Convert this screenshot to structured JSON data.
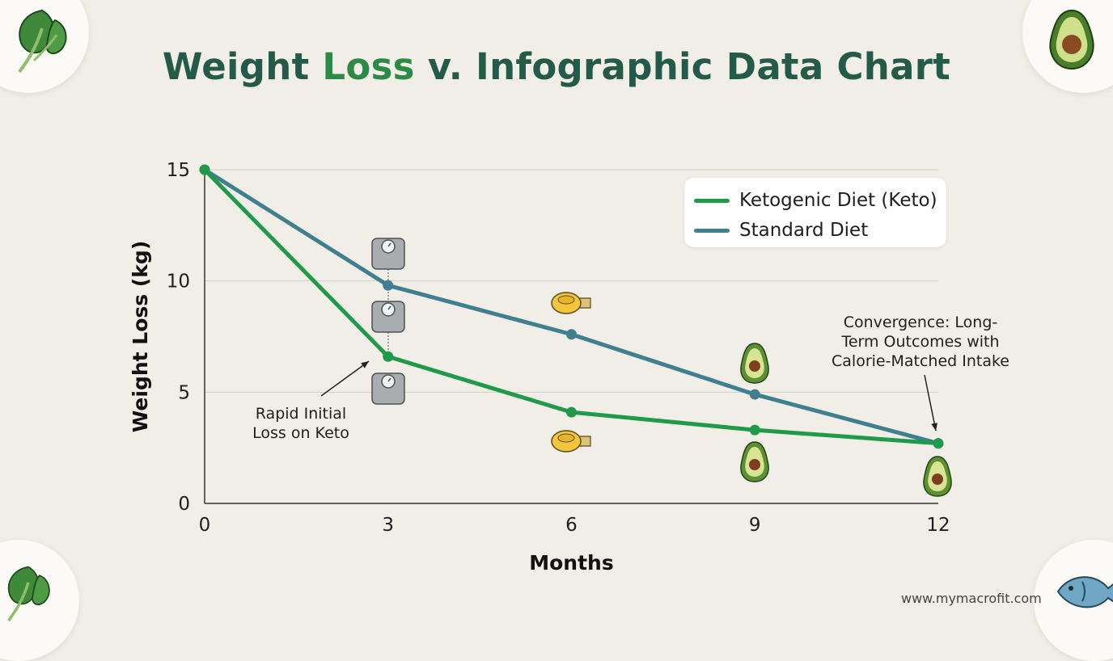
{
  "title": {
    "part1": "Weight ",
    "part2": "Loss",
    "part3": " v. Infographic Data Chart"
  },
  "chart_data": {
    "type": "line",
    "title": "Weight Loss v. Infographic Data Chart",
    "xlabel": "Months",
    "ylabel": "Weight Loss (kg)",
    "x": [
      0,
      3,
      6,
      9,
      12
    ],
    "xticks": [
      "0",
      "3",
      "6",
      "9",
      "12"
    ],
    "yticks": [
      "0",
      "5",
      "10",
      "15"
    ],
    "xlim": [
      0,
      12
    ],
    "ylim": [
      0,
      15
    ],
    "grid": "horizontal",
    "legend_position": "top-right",
    "series": [
      {
        "name": "Ketogenic Diet (Keto)",
        "color": "#1f9a48",
        "values": [
          15,
          6.6,
          4.1,
          3.3,
          2.7
        ]
      },
      {
        "name": "Standard Diet",
        "color": "#3f7f8f",
        "values": [
          15,
          9.8,
          7.6,
          4.9,
          2.7
        ]
      }
    ],
    "annotations": [
      {
        "text": "Rapid Initial Loss on Keto",
        "x": 3,
        "y": 6.6
      },
      {
        "text": "Convergence: Long-Term Outcomes with Calorie-Matched Intake",
        "x": 12,
        "y": 2.7
      }
    ]
  },
  "annotations": {
    "rapid_line1": "Rapid Initial",
    "rapid_line2": "Loss on Keto",
    "conv_line1": "Convergence: Long-",
    "conv_line2": "Term Outcomes with",
    "conv_line3": "Calorie-Matched Intake"
  },
  "icons": [
    "spinach-icon",
    "avocado-icon",
    "fish-icon",
    "scale-icon",
    "tape-measure-icon"
  ],
  "footer": {
    "url": "www.mymacrofit.com"
  }
}
